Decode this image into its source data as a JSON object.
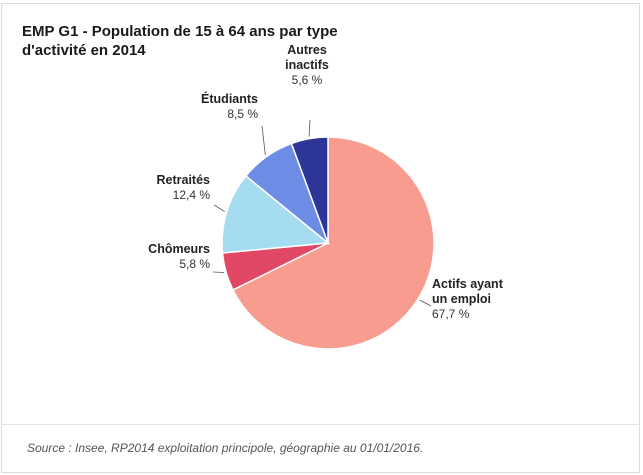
{
  "title": "EMP G1 - Population de 15 à 64 ans par type d'activité en 2014",
  "source": "Source : Insee, RP2014 exploitation principole, géographie au 01/01/2016.",
  "chart_data": {
    "type": "pie",
    "title": "EMP G1 - Population de 15 à 64 ans par type d'activité en 2014",
    "start": "12 o'clock, clockwise",
    "slices": [
      {
        "label": [
          "Actifs ayant",
          "un emploi"
        ],
        "value": 67.7,
        "value_label": "67,7 %",
        "color": "#f79c8e"
      },
      {
        "label": [
          "Chômeurs"
        ],
        "value": 5.8,
        "value_label": "5,8 %",
        "color": "#e24765"
      },
      {
        "label": [
          "Retraités"
        ],
        "value": 12.4,
        "value_label": "12,4 %",
        "color": "#a6dcf0"
      },
      {
        "label": [
          "Étudiants"
        ],
        "value": 8.5,
        "value_label": "8,5 %",
        "color": "#6c8ce6"
      },
      {
        "label": [
          "Autres",
          "inactifs"
        ],
        "value": 5.6,
        "value_label": "5,6 %",
        "color": "#2e3598"
      }
    ]
  }
}
